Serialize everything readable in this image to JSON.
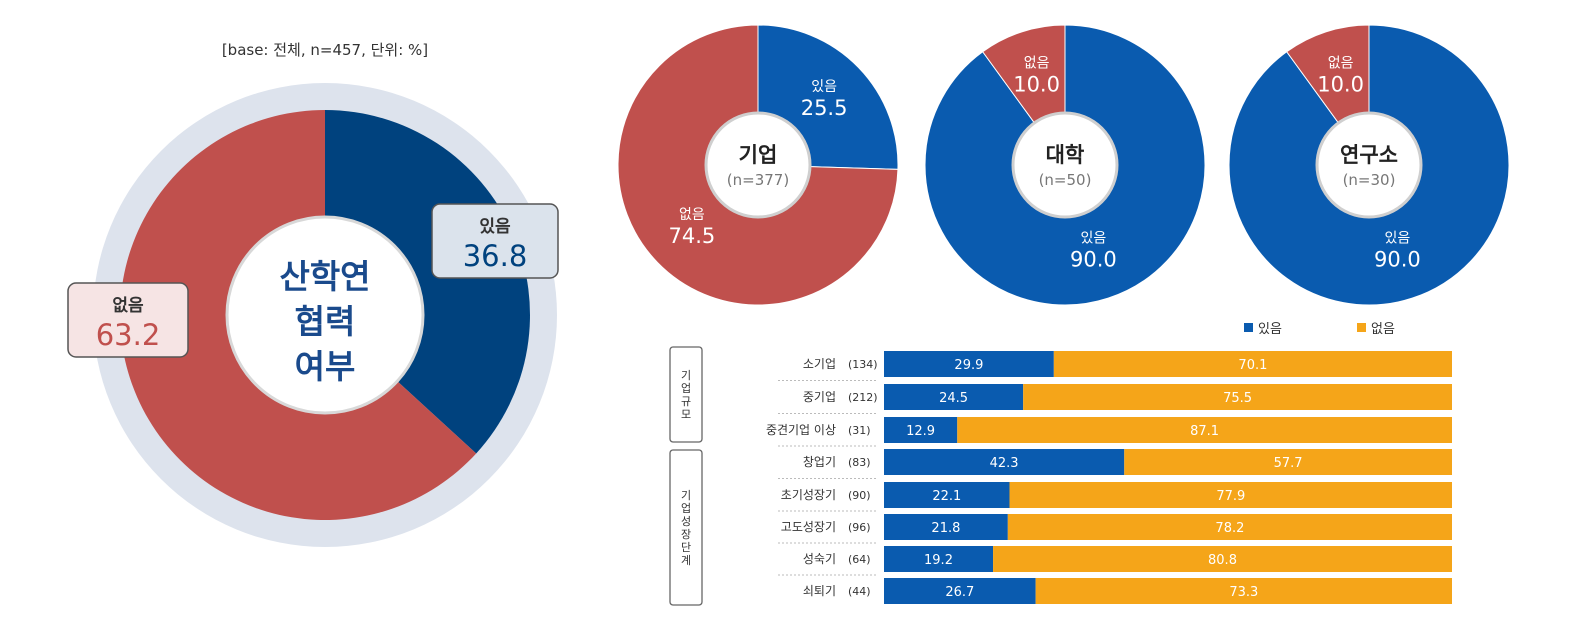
{
  "note": "[base: 전체, n=457, 단위: %]",
  "colors": {
    "yes_main": "#00427e",
    "no_main": "#c0504d",
    "ring": "#dde3ed",
    "yes_small": "#0a5baf",
    "bar_yes": "#0a5baf",
    "bar_no": "#f5a519",
    "center_text": "#1a4a8c",
    "callout_yes_bg": "#dbe3ec",
    "callout_no_bg": "#f6e4e4"
  },
  "main_center_lines": [
    "산학연",
    "협력",
    "여부"
  ],
  "main_callouts": {
    "yes": {
      "caption": "있음",
      "value": "36.8"
    },
    "no": {
      "caption": "없음",
      "value": "63.2"
    }
  },
  "chart_data": [
    {
      "type": "pie",
      "labels": [
        "있음",
        "없음"
      ],
      "values": [
        36.8,
        63.2
      ],
      "note": "[base: 전체, n=457, 단위: %]"
    },
    {
      "type": "pie",
      "title": "기업",
      "subtitle": "(n=377)",
      "labels": [
        "있음",
        "없음"
      ],
      "values": [
        25.5,
        74.5
      ]
    },
    {
      "type": "pie",
      "title": "대학",
      "subtitle": "(n=50)",
      "labels": [
        "있음",
        "없음"
      ],
      "values": [
        90.0,
        10.0
      ]
    },
    {
      "type": "pie",
      "title": "연구소",
      "subtitle": "(n=30)",
      "labels": [
        "있음",
        "없음"
      ],
      "values": [
        90.0,
        10.0
      ]
    },
    {
      "type": "bar",
      "stacked": true,
      "orientation": "horizontal",
      "legend": [
        "있음",
        "없음"
      ],
      "legend_position": "top-right",
      "groups": [
        {
          "label": "기업규모",
          "rows": [
            0,
            1,
            2
          ]
        },
        {
          "label": "기업성장단계",
          "rows": [
            3,
            4,
            5,
            6,
            7
          ]
        }
      ],
      "categories": [
        "소기업",
        "중기업",
        "중견기업 이상",
        "창업기",
        "초기성장기",
        "고도성장기",
        "성숙기",
        "쇠퇴기"
      ],
      "n": [
        "(134)",
        "(212)",
        "(31)",
        "(83)",
        "(90)",
        "(96)",
        "(64)",
        "(44)"
      ],
      "series": [
        {
          "name": "있음",
          "values": [
            29.9,
            24.5,
            12.9,
            42.3,
            22.1,
            21.8,
            19.2,
            26.7
          ]
        },
        {
          "name": "없음",
          "values": [
            70.1,
            75.5,
            87.1,
            57.7,
            77.9,
            78.2,
            80.8,
            73.3
          ]
        }
      ]
    }
  ]
}
